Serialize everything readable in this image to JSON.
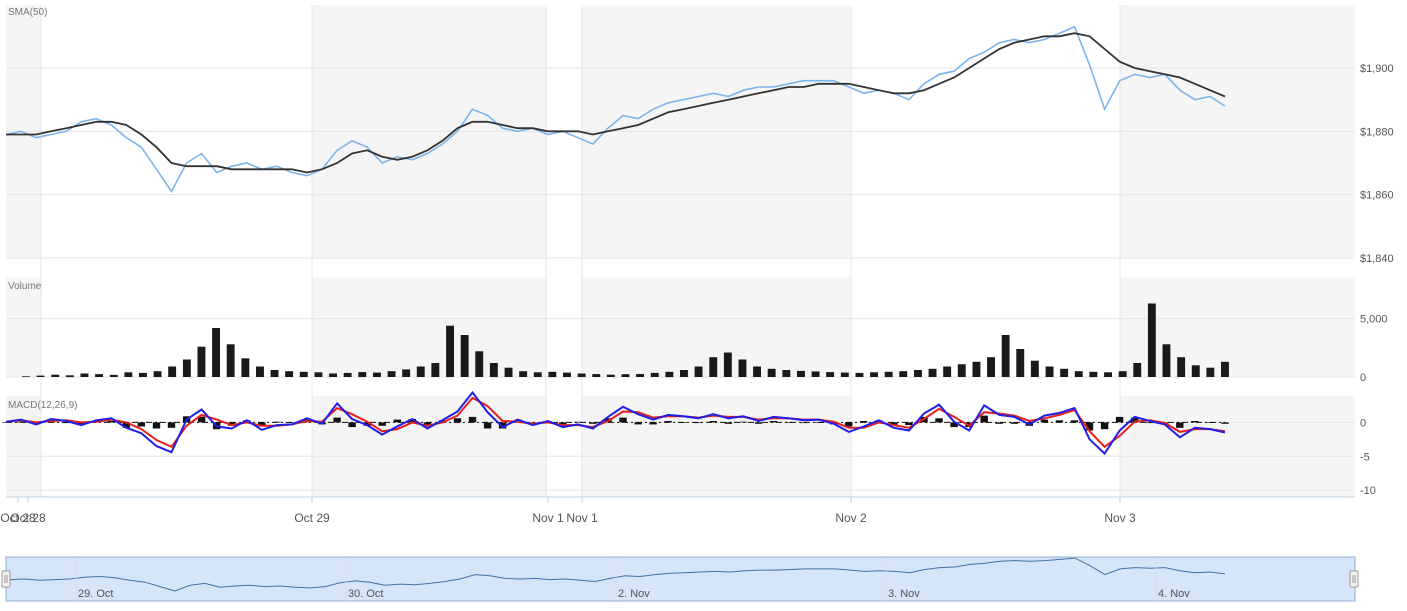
{
  "colors": {
    "price": "#7cb5ec",
    "sma": "#333333",
    "volume": "#1a1a1a",
    "macd": "#1f1fe6",
    "signal": "#e61f1f",
    "histogram": "#111111",
    "grid": "#e6e6e6",
    "band": "#f5f5f5",
    "navigator_fill": "#cfe0f7",
    "navigator_line": "#4572a7"
  },
  "navigator": {
    "labels": [
      "29. Oct",
      "30. Oct",
      "2. Nov",
      "3. Nov",
      "4. Nov"
    ]
  },
  "chart_data": [
    {
      "type": "line",
      "title": "SMA(50)",
      "x_labels": [
        "Oct 28",
        "Oct 28",
        "Oct 29",
        "Nov 1",
        "Nov 1",
        "Nov 2",
        "Nov 3"
      ],
      "ylim": [
        1840,
        1900
      ],
      "y_ticks": [
        "$1,840",
        "$1,860",
        "$1,880",
        "$1,900"
      ],
      "series": [
        {
          "role": "price",
          "values": [
            1879,
            1880,
            1878,
            1879,
            1880,
            1883,
            1884,
            1882,
            1878,
            1875,
            1868,
            1861,
            1870,
            1873,
            1867,
            1869,
            1870,
            1868,
            1869,
            1867,
            1866,
            1868,
            1874,
            1877,
            1875,
            1870,
            1872,
            1871,
            1873,
            1876,
            1880,
            1887,
            1885,
            1881,
            1880,
            1881,
            1879,
            1880,
            1878,
            1876,
            1881,
            1885,
            1884,
            1887,
            1889,
            1890,
            1891,
            1892,
            1891,
            1893,
            1894,
            1894,
            1895,
            1896,
            1896,
            1896,
            1894,
            1892,
            1893,
            1892,
            1890,
            1895,
            1898,
            1899,
            1903,
            1905,
            1908,
            1909,
            1908,
            1909,
            1911,
            1913,
            1901,
            1887,
            1896,
            1898,
            1897,
            1898,
            1893,
            1890,
            1891,
            1888
          ]
        },
        {
          "role": "sma",
          "values": [
            1879,
            1879,
            1879,
            1880,
            1881,
            1882,
            1883,
            1883,
            1882,
            1879,
            1875,
            1870,
            1869,
            1869,
            1869,
            1868,
            1868,
            1868,
            1868,
            1868,
            1867,
            1868,
            1870,
            1873,
            1874,
            1872,
            1871,
            1872,
            1874,
            1877,
            1881,
            1883,
            1883,
            1882,
            1881,
            1881,
            1880,
            1880,
            1880,
            1879,
            1880,
            1881,
            1882,
            1884,
            1886,
            1887,
            1888,
            1889,
            1890,
            1891,
            1892,
            1893,
            1894,
            1894,
            1895,
            1895,
            1895,
            1894,
            1893,
            1892,
            1892,
            1893,
            1895,
            1897,
            1900,
            1903,
            1906,
            1908,
            1909,
            1910,
            1910,
            1911,
            1910,
            1906,
            1902,
            1900,
            1899,
            1898,
            1897,
            1895,
            1893,
            1891
          ]
        }
      ]
    },
    {
      "type": "bar",
      "title": "Volume",
      "ylim": [
        0,
        6000
      ],
      "y_ticks": [
        "0",
        "5,000"
      ],
      "series": [
        {
          "role": "volume",
          "values": [
            60,
            120,
            200,
            150,
            300,
            250,
            180,
            400,
            350,
            500,
            900,
            1500,
            2600,
            4200,
            2800,
            1600,
            900,
            600,
            500,
            450,
            400,
            300,
            350,
            420,
            380,
            500,
            650,
            900,
            1200,
            4400,
            3600,
            2200,
            1200,
            800,
            500,
            400,
            450,
            380,
            300,
            250,
            200,
            240,
            260,
            350,
            450,
            600,
            900,
            1700,
            2100,
            1500,
            900,
            700,
            600,
            520,
            480,
            420,
            380,
            350,
            400,
            450,
            500,
            600,
            700,
            900,
            1100,
            1300,
            1700,
            3600,
            2400,
            1400,
            900,
            700,
            500,
            450,
            400,
            500,
            1200,
            6300,
            2800,
            1700,
            1000,
            800,
            1300
          ]
        }
      ]
    },
    {
      "type": "line",
      "title": "MACD(12,26,9)",
      "ylim": [
        -11,
        3
      ],
      "y_ticks": [
        "-10",
        "-5",
        "0"
      ],
      "series": [
        {
          "role": "macd",
          "values": [
            0.1,
            0.4,
            -0.3,
            0.5,
            0.2,
            -0.4,
            0.3,
            0.6,
            -0.8,
            -1.6,
            -3.5,
            -4.4,
            0.4,
            1.9,
            -0.6,
            -0.9,
            0.3,
            -1.1,
            -0.4,
            -0.3,
            0.6,
            -0.2,
            2.8,
            0.5,
            -0.4,
            -1.8,
            -0.6,
            0.5,
            -0.9,
            0.3,
            1.6,
            4.4,
            1.5,
            -0.7,
            0.4,
            -0.4,
            0.2,
            -0.7,
            -0.3,
            -0.9,
            0.8,
            2.3,
            1.2,
            0.4,
            1.1,
            0.9,
            0.6,
            1.2,
            0.6,
            0.9,
            0.2,
            0.8,
            0.6,
            0.3,
            0.4,
            -0.2,
            -1.4,
            -0.6,
            0.3,
            -0.8,
            -1.2,
            1.3,
            2.6,
            0.1,
            -1.2,
            2.5,
            1.1,
            0.8,
            -0.3,
            1.0,
            1.4,
            2.1,
            -2.5,
            -4.6,
            -1.2,
            0.8,
            0.2,
            -0.3,
            -2.2,
            -0.8,
            -1.0,
            -1.5
          ]
        },
        {
          "role": "signal",
          "values": [
            0.1,
            0.3,
            0.0,
            0.2,
            0.3,
            0.0,
            0.1,
            0.4,
            0.0,
            -1.0,
            -2.6,
            -3.6,
            -0.5,
            1.1,
            0.4,
            -0.4,
            0.0,
            -0.5,
            -0.5,
            -0.3,
            0.2,
            0.1,
            2.1,
            1.2,
            0.1,
            -1.3,
            -1.0,
            0.0,
            -0.5,
            0.0,
            1.0,
            3.6,
            2.4,
            0.2,
            0.1,
            -0.2,
            0.0,
            -0.4,
            -0.4,
            -0.7,
            0.2,
            1.6,
            1.5,
            0.7,
            0.9,
            0.9,
            0.7,
            1.0,
            0.8,
            0.8,
            0.4,
            0.6,
            0.6,
            0.4,
            0.4,
            0.1,
            -0.8,
            -0.8,
            0.0,
            -0.4,
            -0.8,
            0.5,
            2.0,
            0.8,
            -0.5,
            1.5,
            1.3,
            1.0,
            0.2,
            0.6,
            1.1,
            1.8,
            -1.3,
            -3.6,
            -2.0,
            0.1,
            0.3,
            -0.1,
            -1.4,
            -1.0,
            -1.0,
            -1.3
          ]
        },
        {
          "role": "histogram",
          "values": [
            0.0,
            0.1,
            -0.3,
            0.3,
            -0.1,
            -0.4,
            0.2,
            0.2,
            -0.8,
            -0.6,
            -0.9,
            -0.8,
            0.9,
            0.8,
            -1.0,
            -0.5,
            0.3,
            -0.6,
            0.1,
            0.0,
            0.4,
            -0.3,
            0.7,
            -0.7,
            -0.5,
            -0.5,
            0.4,
            0.5,
            -0.4,
            0.3,
            0.6,
            0.8,
            -0.9,
            -0.9,
            0.3,
            -0.2,
            0.2,
            -0.3,
            0.1,
            -0.2,
            0.6,
            0.7,
            -0.3,
            -0.3,
            0.2,
            0.0,
            -0.1,
            0.2,
            -0.2,
            0.1,
            -0.2,
            0.2,
            0.0,
            -0.1,
            0.0,
            -0.3,
            -0.6,
            0.2,
            0.3,
            -0.4,
            -0.4,
            0.8,
            0.6,
            -0.7,
            -0.7,
            1.0,
            -0.2,
            -0.2,
            -0.5,
            0.4,
            0.3,
            0.3,
            -1.2,
            -1.0,
            0.8,
            0.7,
            -0.1,
            -0.2,
            -0.8,
            0.2,
            0.0,
            -0.2
          ]
        }
      ]
    }
  ]
}
